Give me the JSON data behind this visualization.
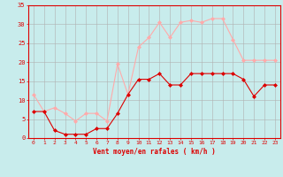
{
  "x": [
    0,
    1,
    2,
    3,
    4,
    5,
    6,
    7,
    8,
    9,
    10,
    11,
    12,
    13,
    14,
    15,
    16,
    17,
    18,
    19,
    20,
    21,
    22,
    23
  ],
  "wind_avg": [
    7,
    7,
    2,
    1,
    1,
    1,
    2.5,
    2.5,
    6.5,
    11.5,
    15.5,
    15.5,
    17,
    14,
    14,
    17,
    17,
    17,
    17,
    17,
    15.5,
    11,
    14,
    14
  ],
  "wind_gust": [
    11.5,
    7,
    8,
    6.5,
    4.5,
    6.5,
    6.5,
    4.5,
    19.5,
    11.5,
    24,
    26.5,
    30.5,
    26.5,
    30.5,
    31,
    30.5,
    31.5,
    31.5,
    26,
    20.5,
    20.5,
    20.5,
    20.5
  ],
  "color_avg": "#dd0000",
  "color_gust": "#ffaaaa",
  "xlabel": "Vent moyen/en rafales ( km/h )",
  "ylim": [
    0,
    35
  ],
  "yticks": [
    0,
    5,
    10,
    15,
    20,
    25,
    30,
    35
  ],
  "bg_color": "#c8ecec",
  "grid_color": "#b0b0b0"
}
